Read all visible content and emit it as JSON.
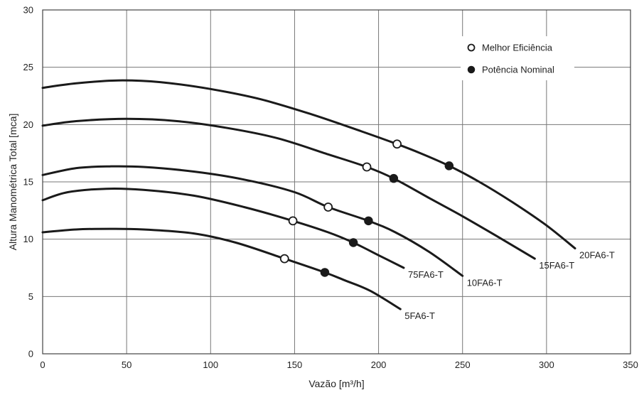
{
  "chart_data": {
    "type": "line",
    "xlabel": "Vazão [m³/h]",
    "ylabel": "Altura Manométrica Total  [mca]",
    "xlim": [
      0,
      350
    ],
    "ylim": [
      0,
      30
    ],
    "xticks": [
      0,
      50,
      100,
      150,
      200,
      250,
      300,
      350
    ],
    "yticks": [
      0,
      5,
      10,
      15,
      20,
      25,
      30
    ],
    "grid": true,
    "legend_position": "top-right",
    "legend": [
      {
        "marker": "open-circle",
        "label": "Melhor Eficiência"
      },
      {
        "marker": "filled-circle",
        "label": "Potência Nominal"
      }
    ],
    "series": [
      {
        "name": "20FA6-T",
        "points": [
          [
            0,
            23.2
          ],
          [
            20,
            23.6
          ],
          [
            45,
            23.85
          ],
          [
            70,
            23.7
          ],
          [
            100,
            23.1
          ],
          [
            130,
            22.2
          ],
          [
            160,
            20.9
          ],
          [
            190,
            19.4
          ],
          [
            211,
            18.3
          ],
          [
            225,
            17.5
          ],
          [
            242,
            16.4
          ],
          [
            260,
            15.0
          ],
          [
            280,
            13.2
          ],
          [
            300,
            11.2
          ],
          [
            317,
            9.2
          ]
        ],
        "best_efficiency": [
          211,
          18.3
        ],
        "nominal_power": [
          242,
          16.4
        ]
      },
      {
        "name": "15FA6-T",
        "points": [
          [
            0,
            19.9
          ],
          [
            20,
            20.3
          ],
          [
            50,
            20.5
          ],
          [
            80,
            20.3
          ],
          [
            110,
            19.7
          ],
          [
            140,
            18.8
          ],
          [
            170,
            17.4
          ],
          [
            193,
            16.3
          ],
          [
            209,
            15.3
          ],
          [
            230,
            13.6
          ],
          [
            250,
            12.0
          ],
          [
            270,
            10.3
          ],
          [
            293,
            8.3
          ]
        ],
        "best_efficiency": [
          193,
          16.3
        ],
        "nominal_power": [
          209,
          15.3
        ]
      },
      {
        "name": "10FA6-T",
        "points": [
          [
            0,
            15.6
          ],
          [
            20,
            16.2
          ],
          [
            40,
            16.35
          ],
          [
            60,
            16.3
          ],
          [
            90,
            15.9
          ],
          [
            120,
            15.2
          ],
          [
            150,
            14.1
          ],
          [
            170,
            12.8
          ],
          [
            194,
            11.6
          ],
          [
            210,
            10.6
          ],
          [
            230,
            8.9
          ],
          [
            250,
            6.8
          ]
        ],
        "best_efficiency": [
          170,
          12.8
        ],
        "nominal_power": [
          194,
          11.6
        ]
      },
      {
        "name": "75FA6-T",
        "points": [
          [
            0,
            13.4
          ],
          [
            15,
            14.1
          ],
          [
            38,
            14.4
          ],
          [
            60,
            14.3
          ],
          [
            90,
            13.8
          ],
          [
            120,
            12.8
          ],
          [
            149,
            11.6
          ],
          [
            170,
            10.6
          ],
          [
            185,
            9.7
          ],
          [
            200,
            8.6
          ],
          [
            215,
            7.5
          ]
        ],
        "best_efficiency": [
          149,
          11.6
        ],
        "nominal_power": [
          185,
          9.7
        ]
      },
      {
        "name": "5FA6-T",
        "points": [
          [
            0,
            10.6
          ],
          [
            20,
            10.85
          ],
          [
            40,
            10.9
          ],
          [
            60,
            10.85
          ],
          [
            90,
            10.5
          ],
          [
            115,
            9.7
          ],
          [
            144,
            8.3
          ],
          [
            168,
            7.1
          ],
          [
            180,
            6.4
          ],
          [
            195,
            5.5
          ],
          [
            213,
            3.9
          ]
        ],
        "best_efficiency": [
          144,
          8.3
        ],
        "nominal_power": [
          168,
          7.1
        ]
      }
    ]
  }
}
